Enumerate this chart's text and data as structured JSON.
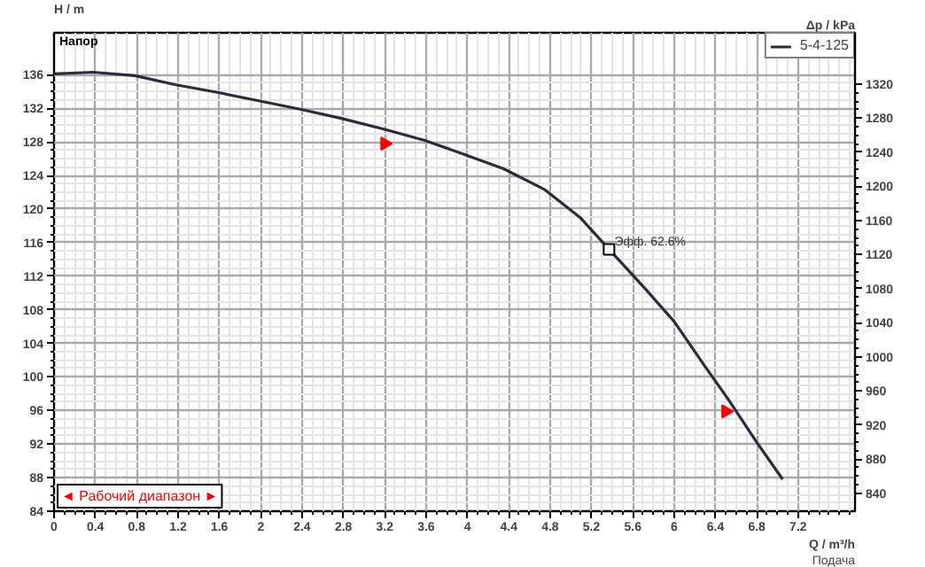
{
  "chart_data": {
    "type": "line",
    "xlabel": "Q / m³/h",
    "ylabel": "H / m",
    "y2label": "Δp / kPa",
    "xlim": [
      0,
      7.75
    ],
    "ylim": [
      84,
      141
    ],
    "y2lim": [
      819,
      1380
    ],
    "xticks": [
      0,
      0.4,
      0.8,
      1.2,
      1.6,
      2,
      2.4,
      2.8,
      3.2,
      3.6,
      4,
      4.4,
      4.8,
      5.2,
      5.6,
      6,
      6.4,
      6.8,
      7.2
    ],
    "yticks": [
      84,
      88,
      92,
      96,
      100,
      104,
      108,
      112,
      116,
      120,
      124,
      128,
      132,
      136
    ],
    "y2ticks": [
      840,
      880,
      920,
      960,
      1000,
      1040,
      1080,
      1120,
      1160,
      1200,
      1240,
      1280,
      1320
    ],
    "grid": true,
    "legend": "top right",
    "series": [
      {
        "name": "5-4-125",
        "color": "#2b2b3b",
        "x": [
          0,
          0.38,
          0.78,
          1.18,
          1.58,
          1.98,
          2.38,
          2.78,
          3.2,
          3.58,
          3.95,
          4.35,
          4.75,
          5.09,
          5.37,
          5.72,
          6.0,
          6.29,
          6.52,
          6.8,
          7.05
        ],
        "values": [
          136.1,
          136.3,
          135.9,
          134.8,
          133.9,
          132.9,
          131.9,
          130.8,
          129.5,
          128.2,
          126.6,
          124.8,
          122.3,
          119.0,
          115.2,
          110.5,
          106.6,
          101.4,
          97.4,
          92.2,
          87.8
        ]
      },
      {
        "type": "scatter",
        "marker": "triangle",
        "color": "#ff0000",
        "x": [
          3.2,
          6.5
        ],
        "values": [
          127.8,
          95.9
        ]
      }
    ],
    "annotations": [
      "Напор",
      {
        "text": "Эфф. 62.6%",
        "x": 5.37,
        "y": 115.2
      },
      "Подача",
      "◄ Рабочий диапазон ►"
    ]
  }
}
